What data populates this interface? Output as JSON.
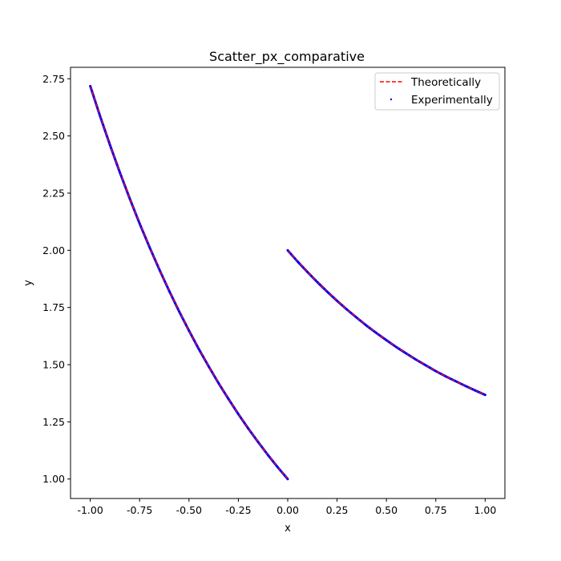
{
  "chart_data": {
    "type": "scatter",
    "title": "Scatter_px_comparative",
    "xlabel": "x",
    "ylabel": "y",
    "xlim": [
      -1.1,
      1.1
    ],
    "ylim": [
      0.915,
      2.8
    ],
    "xticks": [
      "-1.00",
      "-0.75",
      "-0.50",
      "-0.25",
      "0.00",
      "0.25",
      "0.50",
      "0.75",
      "1.00"
    ],
    "xtick_values": [
      -1.0,
      -0.75,
      -0.5,
      -0.25,
      0.0,
      0.25,
      0.5,
      0.75,
      1.0
    ],
    "yticks": [
      "1.00",
      "1.25",
      "1.50",
      "1.75",
      "2.00",
      "2.25",
      "2.50",
      "2.75"
    ],
    "ytick_values": [
      1.0,
      1.25,
      1.5,
      1.75,
      2.0,
      2.25,
      2.5,
      2.75
    ],
    "grid": false,
    "legend_position": "top-right",
    "series": [
      {
        "name": "Theoretically",
        "style": "dashed-line",
        "color": "#ff0000",
        "segments": [
          {
            "x": [
              -1.0,
              -0.9,
              -0.8,
              -0.7,
              -0.6,
              -0.5,
              -0.4,
              -0.3,
              -0.2,
              -0.1,
              0.0
            ],
            "y": [
              2.718,
              2.46,
              2.226,
              2.014,
              1.822,
              1.649,
              1.492,
              1.35,
              1.221,
              1.105,
              1.0
            ]
          },
          {
            "x": [
              0.0,
              0.1,
              0.2,
              0.3,
              0.4,
              0.5,
              0.6,
              0.7,
              0.8,
              0.9,
              1.0
            ],
            "y": [
              2.0,
              1.905,
              1.819,
              1.741,
              1.67,
              1.607,
              1.549,
              1.497,
              1.449,
              1.407,
              1.368
            ]
          }
        ]
      },
      {
        "name": "Experimentally",
        "style": "points",
        "color": "#0000ff",
        "segments": [
          {
            "x": [
              -1.0,
              -0.95,
              -0.9,
              -0.85,
              -0.8,
              -0.75,
              -0.7,
              -0.65,
              -0.6,
              -0.55,
              -0.5,
              -0.45,
              -0.4,
              -0.35,
              -0.3,
              -0.25,
              -0.2,
              -0.15,
              -0.1,
              -0.05,
              0.0
            ],
            "y": [
              2.718,
              2.586,
              2.46,
              2.34,
              2.226,
              2.117,
              2.014,
              1.916,
              1.822,
              1.733,
              1.649,
              1.568,
              1.492,
              1.419,
              1.35,
              1.284,
              1.221,
              1.162,
              1.105,
              1.051,
              1.0
            ]
          },
          {
            "x": [
              0.0,
              0.05,
              0.1,
              0.15,
              0.2,
              0.25,
              0.3,
              0.35,
              0.4,
              0.45,
              0.5,
              0.55,
              0.6,
              0.65,
              0.7,
              0.75,
              0.8,
              0.85,
              0.9,
              0.95,
              1.0
            ],
            "y": [
              2.0,
              1.951,
              1.905,
              1.861,
              1.819,
              1.779,
              1.741,
              1.705,
              1.67,
              1.638,
              1.607,
              1.577,
              1.549,
              1.522,
              1.497,
              1.472,
              1.449,
              1.428,
              1.407,
              1.387,
              1.368
            ]
          }
        ]
      }
    ]
  }
}
